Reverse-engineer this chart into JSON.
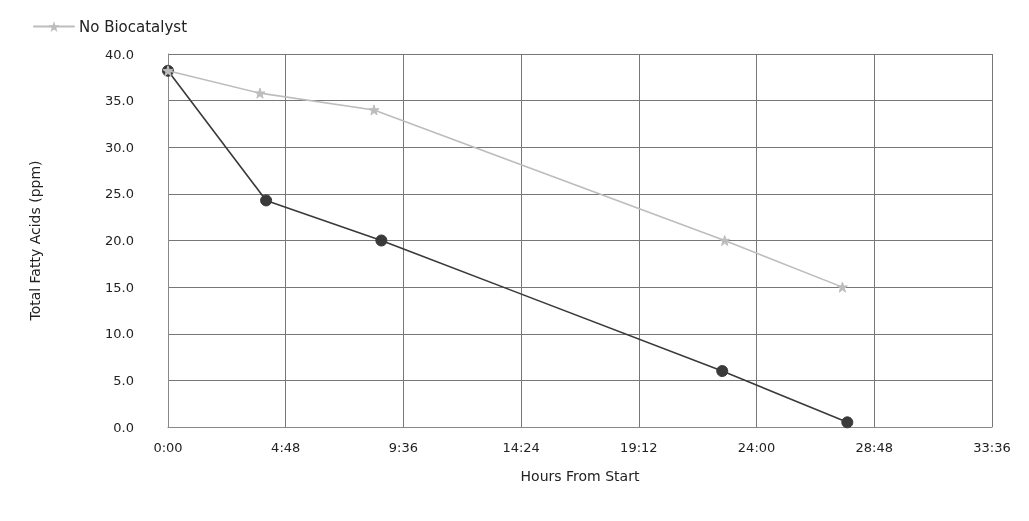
{
  "chart_data": {
    "type": "line",
    "xlabel": "Hours From Start",
    "ylabel": "Total Fatty Acids (ppm)",
    "series": [
      {
        "name": "No Biocatalyst",
        "color": "#bdbdbd",
        "marker": "star",
        "x": [
          0,
          3.75,
          8.4,
          22.7,
          27.5
        ],
        "values": [
          38.2,
          35.8,
          34.0,
          20.0,
          15.0
        ]
      },
      {
        "color": "#3a3a3a",
        "marker": "circle",
        "x": [
          0,
          4,
          8.7,
          22.6,
          27.7
        ],
        "values": [
          38.2,
          24.3,
          20.0,
          6.0,
          0.5
        ]
      }
    ],
    "xlim": [
      0,
      33.6
    ],
    "xticks": [
      {
        "value": 0,
        "label": "0:00"
      },
      {
        "value": 4.8,
        "label": "4:48"
      },
      {
        "value": 9.6,
        "label": "9:36"
      },
      {
        "value": 14.4,
        "label": "14:24"
      },
      {
        "value": 19.2,
        "label": "19:12"
      },
      {
        "value": 24,
        "label": "24:00"
      },
      {
        "value": 28.8,
        "label": "28:48"
      },
      {
        "value": 33.6,
        "label": "33:36"
      }
    ],
    "ylim": [
      0,
      40
    ],
    "yticks": [
      {
        "value": 0,
        "label": "0.0"
      },
      {
        "value": 5,
        "label": "5.0"
      },
      {
        "value": 10,
        "label": "10.0"
      },
      {
        "value": 15,
        "label": "15.0"
      },
      {
        "value": 20,
        "label": "20.0"
      },
      {
        "value": 25,
        "label": "25.0"
      },
      {
        "value": 30,
        "label": "30.0"
      },
      {
        "value": 35,
        "label": "35.0"
      },
      {
        "value": 40,
        "label": "40.0"
      }
    ],
    "grid": true,
    "legend": "top left",
    "line_style": "solid"
  }
}
